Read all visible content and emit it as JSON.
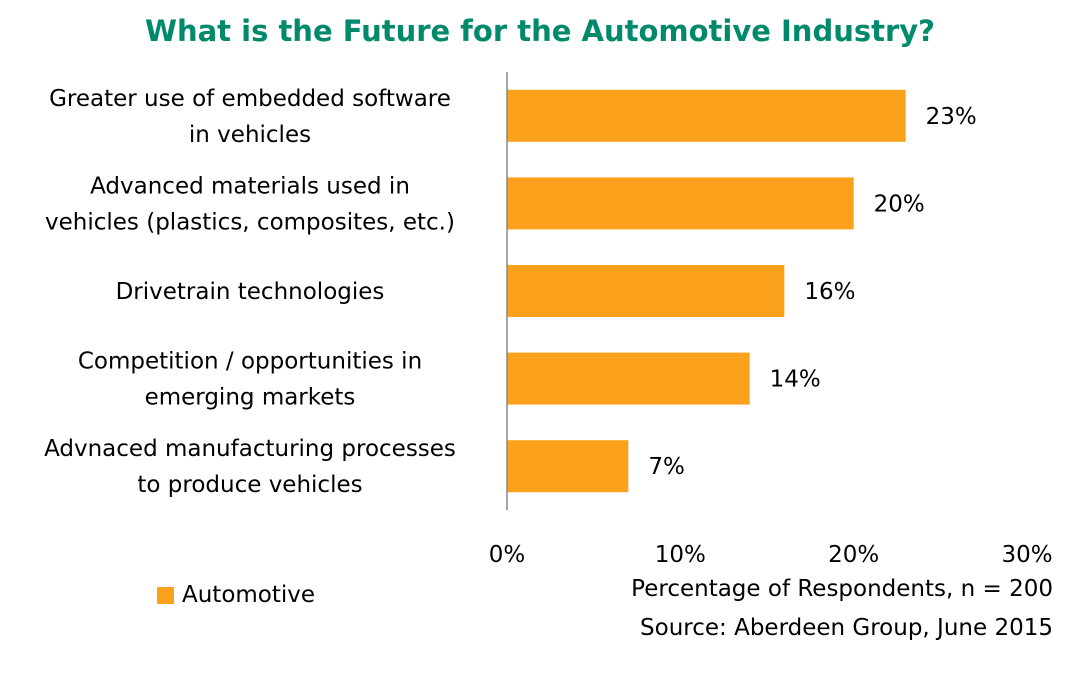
{
  "chart_data": {
    "type": "bar",
    "orientation": "horizontal",
    "title": "What is the Future for the Automotive Industry?",
    "categories": [
      [
        "Greater use of embedded software",
        "in vehicles"
      ],
      [
        "Advanced materials used in",
        "vehicles (plastics, composites, etc.)"
      ],
      [
        "Drivetrain technologies"
      ],
      [
        "Competition / opportunities in",
        "emerging markets"
      ],
      [
        "Advnaced manufacturing processes",
        "to produce vehicles"
      ]
    ],
    "series": [
      {
        "name": "Automotive",
        "values": [
          23,
          20,
          16,
          14,
          7
        ],
        "color": "#fca11b"
      }
    ],
    "data_labels": [
      "23%",
      "20%",
      "16%",
      "14%",
      "7%"
    ],
    "xlim": [
      0,
      30
    ],
    "xticks": [
      0,
      10,
      20,
      30
    ],
    "xtick_labels": [
      "0%",
      "10%",
      "20%",
      "30%"
    ],
    "xlabel": "Percentage of Respondents, n = 200",
    "source": "Source: Aberdeen Group, June 2015",
    "legend_position": "bottom-left",
    "grid": false,
    "title_color": "#00896b"
  }
}
